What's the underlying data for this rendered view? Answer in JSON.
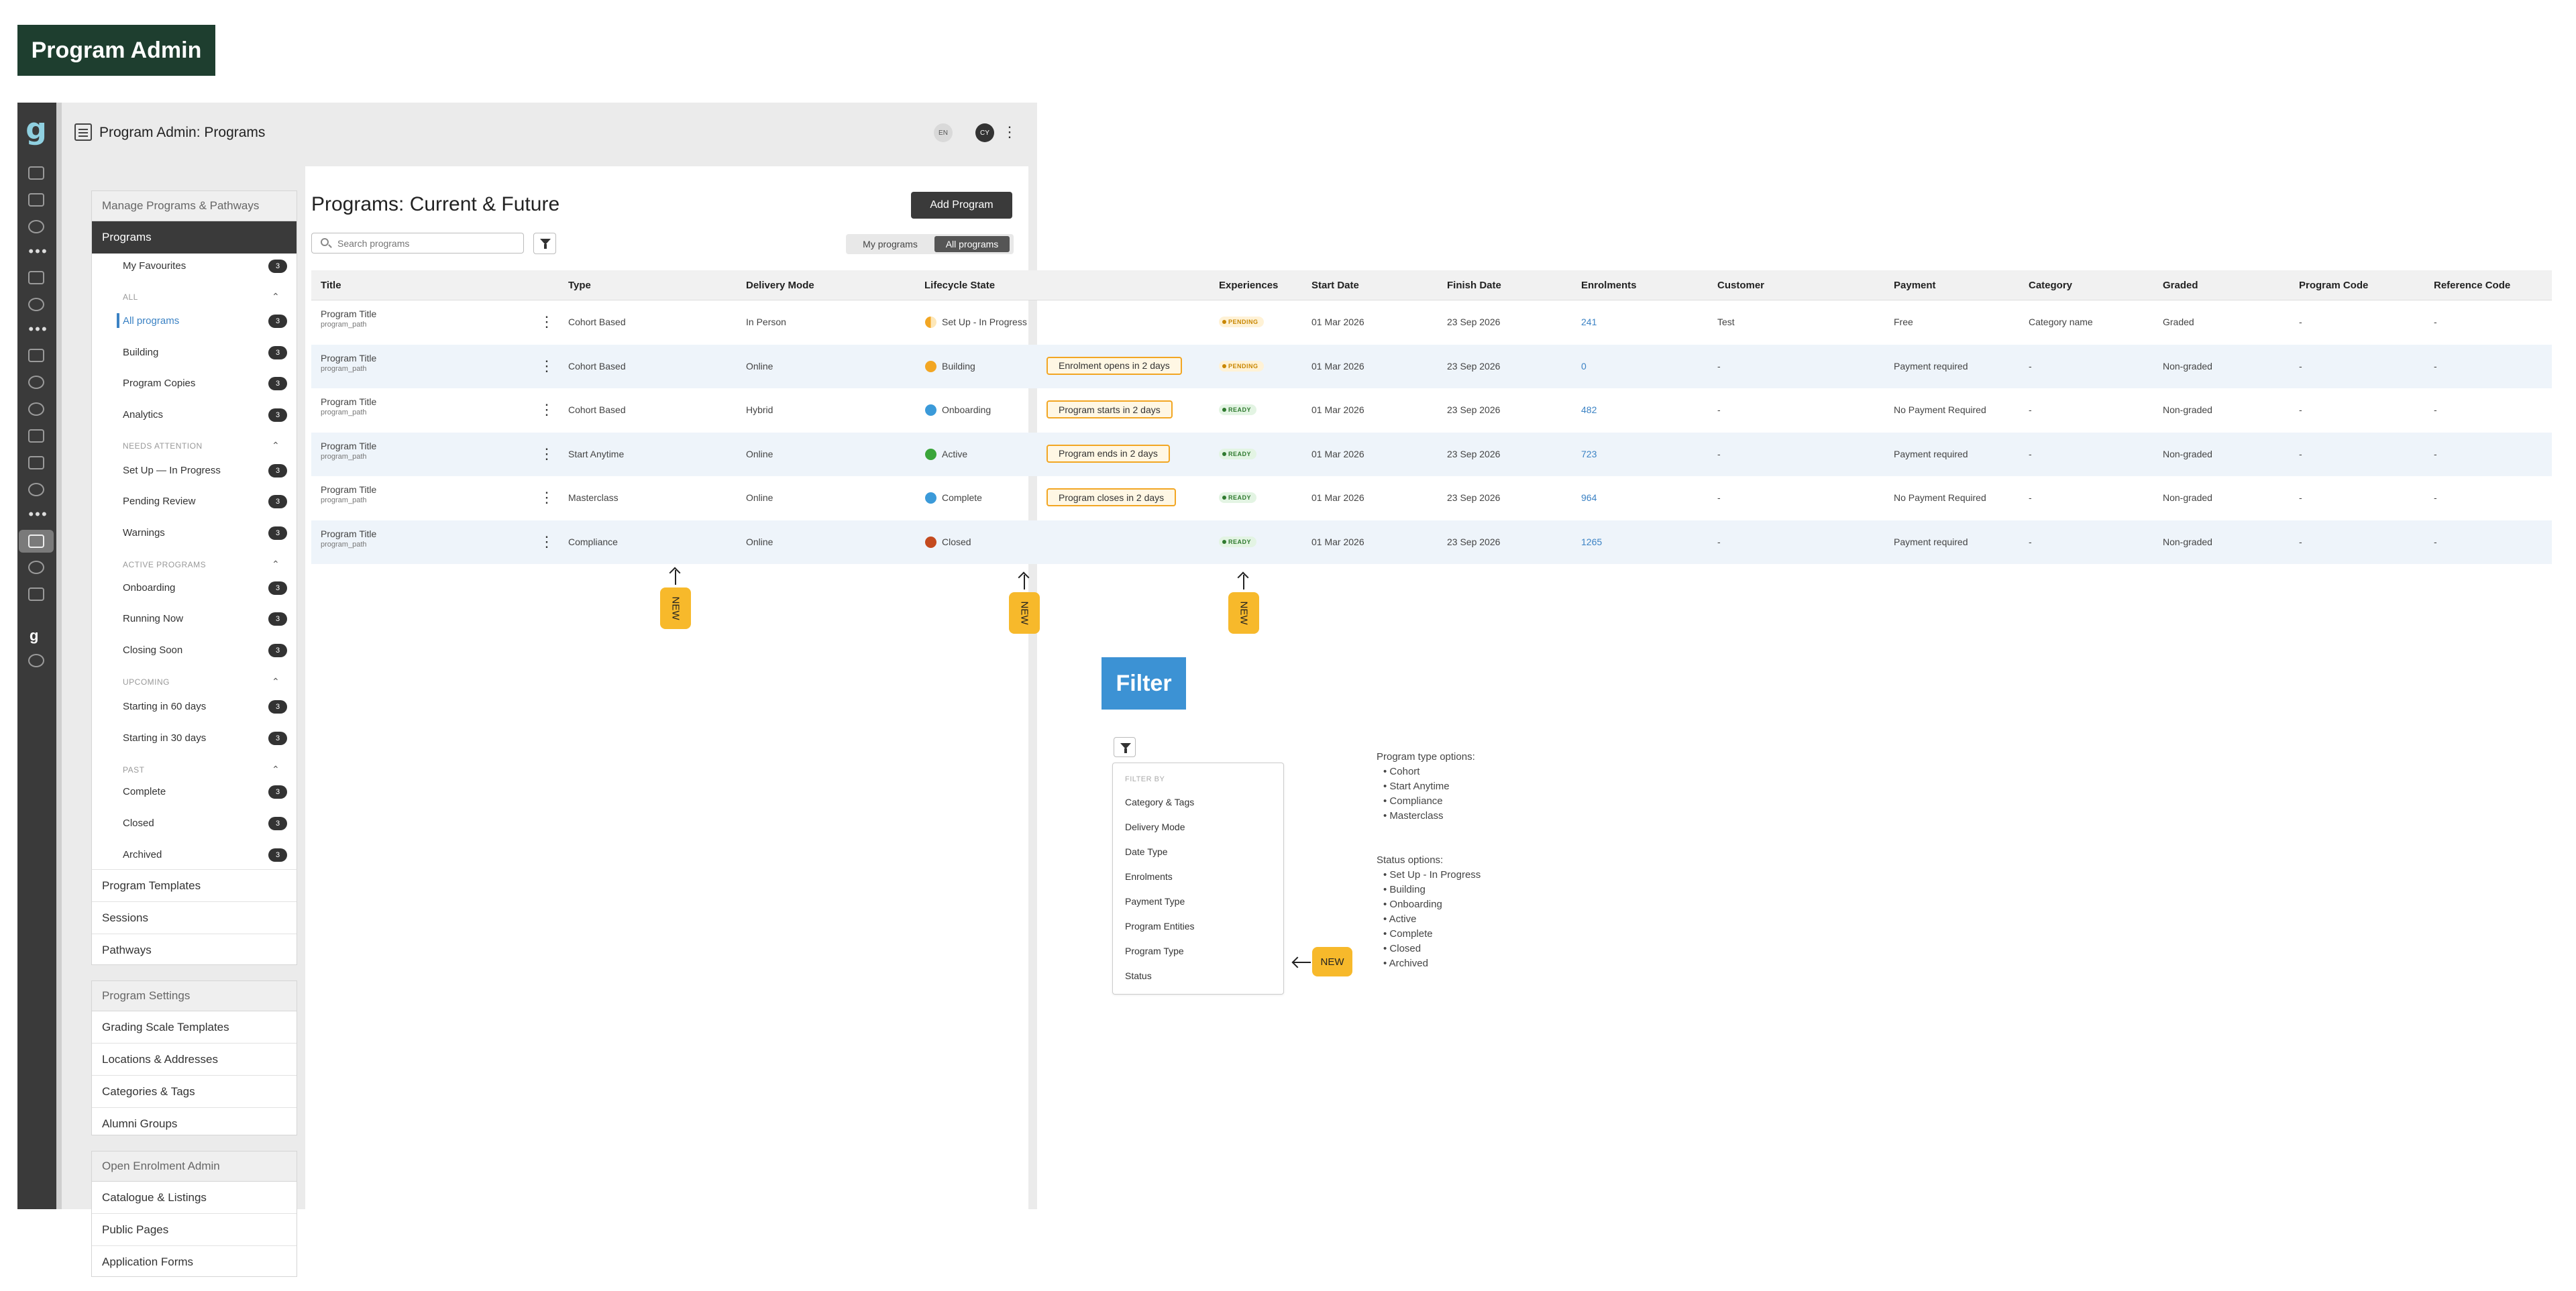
{
  "page_badge": "Program Admin",
  "header": {
    "title": "Program Admin:  Programs",
    "lang": "EN",
    "avatar": "CY"
  },
  "sidebar": {
    "manage_head": "Manage Programs & Pathways",
    "programs": "Programs",
    "subitems": [
      {
        "label": "My Favourites",
        "count": "3"
      },
      {
        "group": "ALL"
      },
      {
        "label": "All programs",
        "count": "3",
        "active": true
      },
      {
        "label": "Building",
        "count": "3"
      },
      {
        "label": "Program Copies",
        "count": "3"
      },
      {
        "label": "Analytics",
        "count": "3"
      },
      {
        "group": "NEEDS ATTENTION"
      },
      {
        "label": "Set Up — In Progress",
        "count": "3"
      },
      {
        "label": "Pending Review",
        "count": "3"
      },
      {
        "label": "Warnings",
        "count": "3"
      },
      {
        "group": "ACTIVE PROGRAMS"
      },
      {
        "label": "Onboarding",
        "count": "3"
      },
      {
        "label": "Running Now",
        "count": "3"
      },
      {
        "label": "Closing Soon",
        "count": "3"
      },
      {
        "group": "UPCOMING"
      },
      {
        "label": "Starting in 60 days",
        "count": "3"
      },
      {
        "label": "Starting in 30 days",
        "count": "3"
      },
      {
        "group": "PAST"
      },
      {
        "label": "Complete",
        "count": "3"
      },
      {
        "label": "Closed",
        "count": "3"
      },
      {
        "label": "Archived",
        "count": "3"
      }
    ],
    "bottom_items": [
      "Program Templates",
      "Sessions",
      "Pathways"
    ],
    "settings_head": "Program Settings",
    "settings_items": [
      "Grading Scale Templates",
      "Locations & Addresses",
      "Categories & Tags",
      "Alumni Groups"
    ],
    "enrol_head": "Open Enrolment Admin",
    "enrol_items": [
      "Catalogue & Listings",
      "Public Pages",
      "Application Forms"
    ]
  },
  "main": {
    "title": "Programs: Current & Future",
    "add_button": "Add Program",
    "search_placeholder": "Search programs",
    "toggle": [
      "My programs",
      "All programs"
    ]
  },
  "table": {
    "columns": [
      "Title",
      "Type",
      "Delivery Mode",
      "Lifecycle State",
      "Experiences",
      "Start Date",
      "Finish Date",
      "Enrolments",
      "Customer",
      "Payment",
      "Category",
      "Graded",
      "Program Code",
      "Reference Code"
    ],
    "rows": [
      {
        "title": "Program Title",
        "path": "program_path",
        "type": "Cohort Based",
        "mode": "In Person",
        "state": "Set Up - In Progress",
        "state_color": "half",
        "note": "",
        "exp": "PENDING",
        "start": "01 Mar 2026",
        "finish": "23 Sep 2026",
        "enrol": "241",
        "customer": "Test",
        "payment": "Free",
        "category": "Category name",
        "graded": "Graded",
        "code": "-",
        "ref": "-"
      },
      {
        "title": "Program Title",
        "path": "program_path",
        "type": "Cohort Based",
        "mode": "Online",
        "state": "Building",
        "state_color": "#f2a623",
        "note": "Enrolment opens in 2 days",
        "exp": "PENDING",
        "start": "01 Mar 2026",
        "finish": "23 Sep 2026",
        "enrol": "0",
        "customer": "-",
        "payment": "Payment required",
        "category": "-",
        "graded": "Non-graded",
        "code": "-",
        "ref": "-"
      },
      {
        "title": "Program Title",
        "path": "program_path",
        "type": "Cohort Based",
        "mode": "Hybrid",
        "state": "Onboarding",
        "state_color": "#3b9ad9",
        "note": "Program starts in 2 days",
        "exp": "READY",
        "start": "01 Mar 2026",
        "finish": "23 Sep 2026",
        "enrol": "482",
        "customer": "-",
        "payment": "No Payment Required",
        "category": "-",
        "graded": "Non-graded",
        "code": "-",
        "ref": "-"
      },
      {
        "title": "Program Title",
        "path": "program_path",
        "type": "Start Anytime",
        "mode": "Online",
        "state": "Active",
        "state_color": "#3aa53a",
        "note": "Program ends in 2 days",
        "exp": "READY",
        "start": "01 Mar 2026",
        "finish": "23 Sep 2026",
        "enrol": "723",
        "customer": "-",
        "payment": "Payment required",
        "category": "-",
        "graded": "Non-graded",
        "code": "-",
        "ref": "-"
      },
      {
        "title": "Program Title",
        "path": "program_path",
        "type": "Masterclass",
        "mode": "Online",
        "state": "Complete",
        "state_color": "#3b9ad9",
        "note": "Program closes in 2 days",
        "exp": "READY",
        "start": "01 Mar 2026",
        "finish": "23 Sep 2026",
        "enrol": "964",
        "customer": "-",
        "payment": "No Payment Required",
        "category": "-",
        "graded": "Non-graded",
        "code": "-",
        "ref": "-"
      },
      {
        "title": "Program Title",
        "path": "program_path",
        "type": "Compliance",
        "mode": "Online",
        "state": "Closed",
        "state_color": "#c44a1e",
        "note": "",
        "exp": "READY",
        "start": "01 Mar 2026",
        "finish": "23 Sep 2026",
        "enrol": "1265",
        "customer": "-",
        "payment": "Payment required",
        "category": "-",
        "graded": "Non-graded",
        "code": "-",
        "ref": "-"
      }
    ]
  },
  "new_label": "NEW",
  "filter": {
    "badge": "Filter",
    "head": "FILTER BY",
    "items": [
      "Category & Tags",
      "Delivery Mode",
      "Date Type",
      "Enrolments",
      "Payment Type",
      "Program Entities",
      "Program Type",
      "Status"
    ]
  },
  "notes": {
    "type_head": "Program type options:",
    "type_items": [
      "Cohort",
      "Start Anytime",
      "Compliance",
      "Masterclass"
    ],
    "status_head": "Status options:",
    "status_items": [
      "Set Up - In Progress",
      "Building",
      "Onboarding",
      "Active",
      "Complete",
      "Closed",
      "Archived"
    ]
  }
}
